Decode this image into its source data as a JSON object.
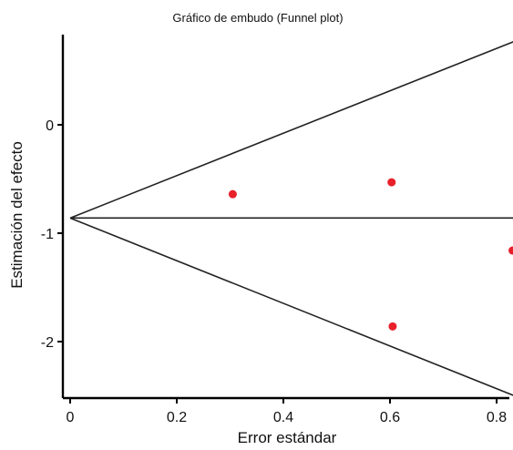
{
  "chart_data": {
    "type": "scatter",
    "title": "Gráfico de embudo (Funnel plot)",
    "xlabel": "Error estándar",
    "ylabel": "Estimación del efecto",
    "xlim": [
      0,
      0.83
    ],
    "ylim": [
      -2.5,
      0.8
    ],
    "x_ticks": [
      0,
      0.2,
      0.4,
      0.6,
      0.8
    ],
    "x_tick_labels": [
      "0",
      "0.2",
      "0.4",
      "0.6",
      "0.8"
    ],
    "y_ticks": [
      0,
      -1,
      -2
    ],
    "y_tick_labels": [
      "0",
      "-1",
      "-2"
    ],
    "grid": false,
    "legend": "none",
    "pooled_estimate": -0.86,
    "funnel_apex_x": 0,
    "funnel_upper_at_xmax": 0.77,
    "funnel_lower_at_xmax": -2.5,
    "points": [
      {
        "x": 0.305,
        "y": -0.64
      },
      {
        "x": 0.603,
        "y": -0.53
      },
      {
        "x": 0.605,
        "y": -1.86
      },
      {
        "x": 0.83,
        "y": -1.16
      }
    ],
    "point_color": "#e8202a",
    "line_color": "#222222",
    "frame_color": "#000000"
  }
}
